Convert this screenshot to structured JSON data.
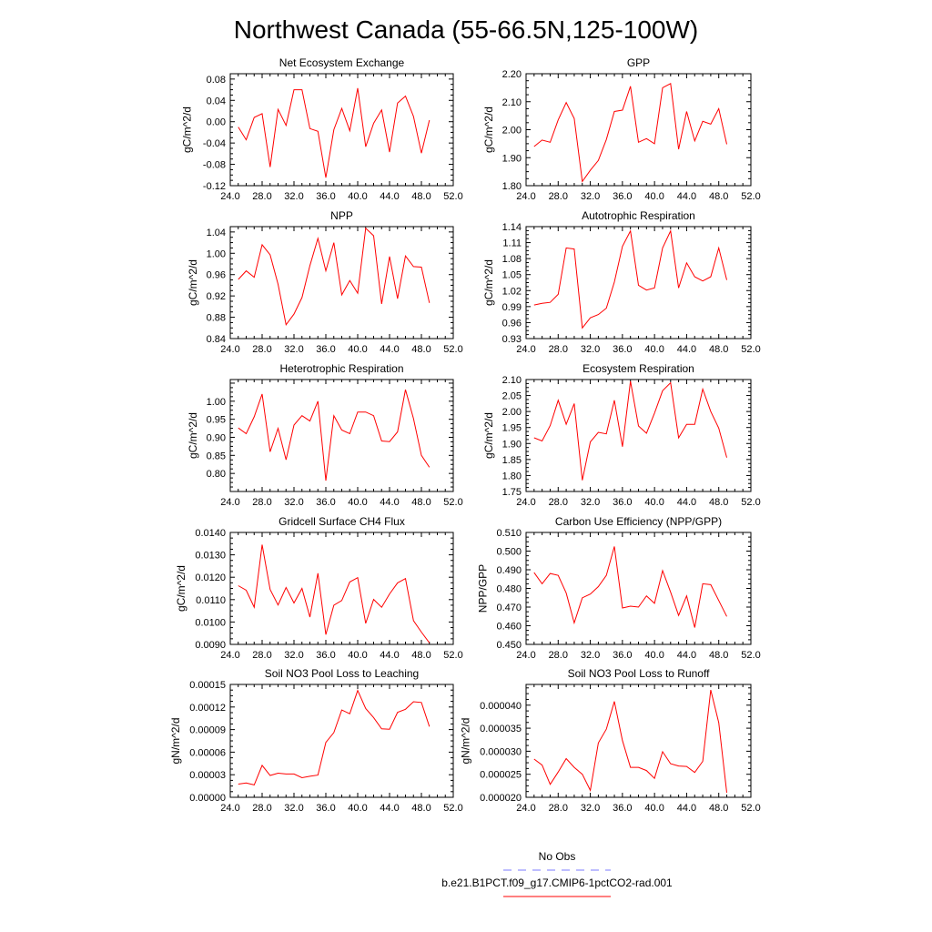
{
  "title": "Northwest Canada (55-66.5N,125-100W)",
  "colors": {
    "series": "#ff0000",
    "legend_dash": "#7b7bff"
  },
  "legend": {
    "no_obs": "No Obs",
    "case": "b.e21.B1PCT.f09_g17.CMIP6-1pctCO2-rad.001"
  },
  "chart_data": [
    {
      "type": "line",
      "title": "Net Ecosystem Exchange",
      "ylabel": "gC/m^2/d",
      "xlim": [
        24,
        52
      ],
      "ylim": [
        -0.12,
        0.09
      ],
      "xticks": [
        "24.0",
        "28.0",
        "32.0",
        "36.0",
        "40.0",
        "44.0",
        "48.0",
        "52.0"
      ],
      "yticks": [
        "-0.12",
        "-0.08",
        "-0.04",
        "0.00",
        "0.04",
        "0.08"
      ],
      "x": [
        25,
        26,
        27,
        28,
        29,
        30,
        31,
        32,
        33,
        34,
        35,
        36,
        37,
        38,
        39,
        40,
        41,
        42,
        43,
        44,
        45,
        46,
        47,
        48,
        49
      ],
      "values": [
        -0.01,
        -0.034,
        0.008,
        0.015,
        -0.085,
        0.023,
        -0.007,
        0.06,
        0.06,
        -0.013,
        -0.018,
        -0.105,
        -0.015,
        0.025,
        -0.017,
        0.063,
        -0.047,
        -0.003,
        0.022,
        -0.057,
        0.035,
        0.048,
        0.01,
        -0.059,
        0.003
      ]
    },
    {
      "type": "line",
      "title": "GPP",
      "ylabel": "gC/m^2/d",
      "xlim": [
        24,
        52
      ],
      "ylim": [
        1.8,
        2.2
      ],
      "xticks": [
        "24.0",
        "28.0",
        "32.0",
        "36.0",
        "40.0",
        "44.0",
        "48.0",
        "52.0"
      ],
      "yticks": [
        "1.80",
        "1.90",
        "2.00",
        "2.10",
        "2.20"
      ],
      "x": [
        25,
        26,
        27,
        28,
        29,
        30,
        31,
        32,
        33,
        34,
        35,
        36,
        37,
        38,
        39,
        40,
        41,
        42,
        43,
        44,
        45,
        46,
        47,
        48,
        49
      ],
      "values": [
        1.94,
        1.963,
        1.955,
        2.035,
        2.097,
        2.04,
        1.815,
        1.855,
        1.89,
        1.965,
        2.065,
        2.07,
        2.155,
        1.955,
        1.968,
        1.95,
        2.15,
        2.165,
        1.93,
        2.065,
        1.96,
        2.03,
        2.02,
        2.075,
        1.948
      ]
    },
    {
      "type": "line",
      "title": "NPP",
      "ylabel": "gC/m^2/d",
      "xlim": [
        24,
        52
      ],
      "ylim": [
        0.84,
        1.05
      ],
      "xticks": [
        "24.0",
        "28.0",
        "32.0",
        "36.0",
        "40.0",
        "44.0",
        "48.0",
        "52.0"
      ],
      "yticks": [
        "0.84",
        "0.88",
        "0.92",
        "0.96",
        "1.00",
        "1.04"
      ],
      "x": [
        25,
        26,
        27,
        28,
        29,
        30,
        31,
        32,
        33,
        34,
        35,
        36,
        37,
        38,
        39,
        40,
        41,
        42,
        43,
        44,
        45,
        46,
        47,
        48,
        49
      ],
      "values": [
        0.951,
        0.967,
        0.955,
        1.016,
        0.997,
        0.942,
        0.866,
        0.886,
        0.917,
        0.977,
        1.028,
        0.967,
        1.02,
        0.922,
        0.949,
        0.925,
        1.047,
        1.033,
        0.905,
        0.994,
        0.915,
        0.995,
        0.975,
        0.974,
        0.907
      ]
    },
    {
      "type": "line",
      "title": "Autotrophic Respiration",
      "ylabel": "gC/m^2/d",
      "xlim": [
        24,
        52
      ],
      "ylim": [
        0.93,
        1.14
      ],
      "xticks": [
        "24.0",
        "28.0",
        "32.0",
        "36.0",
        "40.0",
        "44.0",
        "48.0",
        "52.0"
      ],
      "yticks": [
        "0.93",
        "0.96",
        "0.99",
        "1.02",
        "1.05",
        "1.08",
        "1.11",
        "1.14"
      ],
      "x": [
        25,
        26,
        27,
        28,
        29,
        30,
        31,
        32,
        33,
        34,
        35,
        36,
        37,
        38,
        39,
        40,
        41,
        42,
        43,
        44,
        45,
        46,
        47,
        48,
        49
      ],
      "values": [
        0.993,
        0.996,
        0.998,
        1.013,
        1.1,
        1.098,
        0.95,
        0.969,
        0.975,
        0.987,
        1.036,
        1.103,
        1.132,
        1.03,
        1.021,
        1.025,
        1.1,
        1.132,
        1.025,
        1.072,
        1.046,
        1.038,
        1.046,
        1.1,
        1.04
      ]
    },
    {
      "type": "line",
      "title": "Heterotrophic Respiration",
      "ylabel": "gC/m^2/d",
      "xlim": [
        24,
        52
      ],
      "ylim": [
        0.75,
        1.06
      ],
      "xticks": [
        "24.0",
        "28.0",
        "32.0",
        "36.0",
        "40.0",
        "44.0",
        "48.0",
        "52.0"
      ],
      "yticks": [
        "0.80",
        "0.85",
        "0.90",
        "0.95",
        "1.00"
      ],
      "x": [
        25,
        26,
        27,
        28,
        29,
        30,
        31,
        32,
        33,
        34,
        35,
        36,
        37,
        38,
        39,
        40,
        41,
        42,
        43,
        44,
        45,
        46,
        47,
        48,
        49
      ],
      "values": [
        0.926,
        0.91,
        0.957,
        1.02,
        0.86,
        0.925,
        0.838,
        0.934,
        0.96,
        0.945,
        1.0,
        0.78,
        0.96,
        0.92,
        0.91,
        0.97,
        0.97,
        0.96,
        0.89,
        0.888,
        0.915,
        1.032,
        0.952,
        0.85,
        0.817
      ]
    },
    {
      "type": "line",
      "title": "Ecosystem Respiration",
      "ylabel": "gC/m^2/d",
      "xlim": [
        24,
        52
      ],
      "ylim": [
        1.75,
        2.1
      ],
      "xticks": [
        "24.0",
        "28.0",
        "32.0",
        "36.0",
        "40.0",
        "44.0",
        "48.0",
        "52.0"
      ],
      "yticks": [
        "1.75",
        "1.80",
        "1.85",
        "1.90",
        "1.95",
        "2.00",
        "2.05",
        "2.10"
      ],
      "x": [
        25,
        26,
        27,
        28,
        29,
        30,
        31,
        32,
        33,
        34,
        35,
        36,
        37,
        38,
        39,
        40,
        41,
        42,
        43,
        44,
        45,
        46,
        47,
        48,
        49
      ],
      "values": [
        1.918,
        1.908,
        1.956,
        2.035,
        1.96,
        2.025,
        1.785,
        1.905,
        1.935,
        1.93,
        2.035,
        1.89,
        2.095,
        1.955,
        1.932,
        1.995,
        2.065,
        2.09,
        1.918,
        1.96,
        1.96,
        2.07,
        2.0,
        1.948,
        1.856
      ]
    },
    {
      "type": "line",
      "title": "Gridcell Surface CH4 Flux",
      "ylabel": "gC/m^2/d",
      "xlim": [
        24,
        52
      ],
      "ylim": [
        0.009,
        0.014
      ],
      "xticks": [
        "24.0",
        "28.0",
        "32.0",
        "36.0",
        "40.0",
        "44.0",
        "48.0",
        "52.0"
      ],
      "yticks": [
        "0.0090",
        "0.0100",
        "0.0110",
        "0.0120",
        "0.0130",
        "0.0140"
      ],
      "x": [
        25,
        26,
        27,
        28,
        29,
        30,
        31,
        32,
        33,
        34,
        35,
        36,
        37,
        38,
        39,
        40,
        41,
        42,
        43,
        44,
        45,
        46,
        47,
        48,
        49
      ],
      "values": [
        0.01162,
        0.01142,
        0.01066,
        0.01345,
        0.01145,
        0.01076,
        0.01154,
        0.01085,
        0.0115,
        0.01022,
        0.01218,
        0.00944,
        0.01075,
        0.01096,
        0.01179,
        0.01198,
        0.00994,
        0.01101,
        0.01066,
        0.01125,
        0.01175,
        0.01194,
        0.01006,
        0.00955,
        0.00907
      ]
    },
    {
      "type": "line",
      "title": "Carbon Use Efficiency (NPP/GPP)",
      "ylabel": "NPP/GPP",
      "xlim": [
        24,
        52
      ],
      "ylim": [
        0.45,
        0.51
      ],
      "xticks": [
        "24.0",
        "28.0",
        "32.0",
        "36.0",
        "40.0",
        "44.0",
        "48.0",
        "52.0"
      ],
      "yticks": [
        "0.450",
        "0.460",
        "0.470",
        "0.480",
        "0.490",
        "0.500",
        "0.510"
      ],
      "x": [
        25,
        26,
        27,
        28,
        29,
        30,
        31,
        32,
        33,
        34,
        35,
        36,
        37,
        38,
        39,
        40,
        41,
        42,
        43,
        44,
        45,
        46,
        47,
        48,
        49
      ],
      "values": [
        0.4885,
        0.4825,
        0.488,
        0.487,
        0.4775,
        0.4615,
        0.475,
        0.477,
        0.481,
        0.487,
        0.5025,
        0.4695,
        0.4705,
        0.47,
        0.476,
        0.472,
        0.4895,
        0.478,
        0.4655,
        0.476,
        0.459,
        0.4825,
        0.482,
        0.4735,
        0.465
      ]
    },
    {
      "type": "line",
      "title": "Soil NO3 Pool Loss to Leaching",
      "ylabel": "gN/m^2/d",
      "xlim": [
        24,
        52
      ],
      "ylim": [
        0.0,
        0.00015
      ],
      "xticks": [
        "24.0",
        "28.0",
        "32.0",
        "36.0",
        "40.0",
        "44.0",
        "48.0",
        "52.0"
      ],
      "yticks": [
        "0.00000",
        "0.00003",
        "0.00006",
        "0.00009",
        "0.00012",
        "0.00015"
      ],
      "x": [
        25,
        26,
        27,
        28,
        29,
        30,
        31,
        32,
        33,
        34,
        35,
        36,
        37,
        38,
        39,
        40,
        41,
        42,
        43,
        44,
        45,
        46,
        47,
        48,
        49
      ],
      "values": [
        1.75e-05,
        1.9e-05,
        1.65e-05,
        4.25e-05,
        2.9e-05,
        3.2e-05,
        3.1e-05,
        3.1e-05,
        2.6e-05,
        2.8e-05,
        2.95e-05,
        7.3e-05,
        8.6e-05,
        0.000116,
        0.000111,
        0.000142,
        0.000118,
        0.000106,
        9.1e-05,
        9.05e-05,
        0.000113,
        0.000117,
        0.000127,
        0.000126,
        9.4e-05
      ]
    },
    {
      "type": "line",
      "title": "Soil NO3 Pool Loss to Runoff",
      "ylabel": "gN/m^2/d",
      "xlim": [
        24,
        52
      ],
      "ylim": [
        2e-05,
        4.45e-05
      ],
      "xticks": [
        "24.0",
        "28.0",
        "32.0",
        "36.0",
        "40.0",
        "44.0",
        "48.0",
        "52.0"
      ],
      "yticks": [
        "0.000020",
        "0.000025",
        "0.000030",
        "0.000035",
        "0.000040"
      ],
      "x": [
        25,
        26,
        27,
        28,
        29,
        30,
        31,
        32,
        33,
        34,
        35,
        36,
        37,
        38,
        39,
        40,
        41,
        42,
        43,
        44,
        45,
        46,
        47,
        48,
        49
      ],
      "values": [
        2.83e-05,
        2.7e-05,
        2.28e-05,
        2.55e-05,
        2.84e-05,
        2.65e-05,
        2.5e-05,
        2.15e-05,
        3.18e-05,
        3.48e-05,
        4.08e-05,
        3.23e-05,
        2.65e-05,
        2.65e-05,
        2.58e-05,
        2.41e-05,
        2.99e-05,
        2.73e-05,
        2.68e-05,
        2.67e-05,
        2.54e-05,
        2.78e-05,
        4.33e-05,
        3.62e-05,
        2.1e-05
      ]
    }
  ]
}
